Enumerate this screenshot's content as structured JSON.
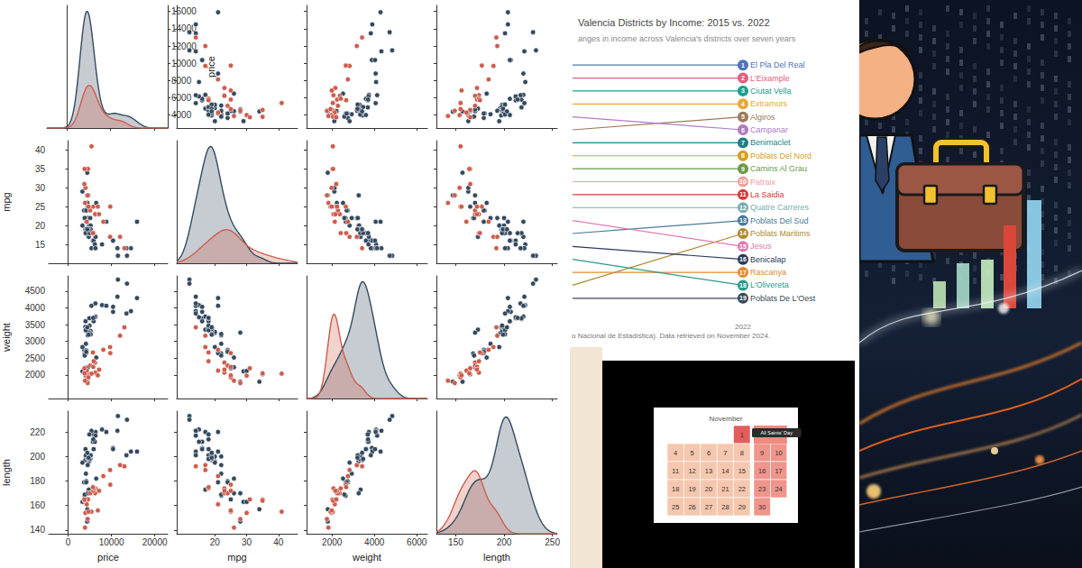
{
  "chart_data": [
    {
      "type": "pairplot",
      "grid": false,
      "marker": "circle",
      "variables": [
        {
          "label": "price",
          "xlim": [
            -4500,
            23000
          ],
          "xticks": [
            0,
            10000,
            20000
          ],
          "ylim": [
            2500,
            16700
          ],
          "yticks": [
            4000,
            6000,
            8000,
            10000,
            12000,
            14000,
            16000
          ]
        },
        {
          "label": "mpg",
          "xlim": [
            8,
            46
          ],
          "xticks": [
            20,
            30,
            40
          ],
          "ylim": [
            10,
            42.5
          ],
          "yticks": [
            15,
            20,
            25,
            30,
            35,
            40
          ]
        },
        {
          "label": "weight",
          "xlim": [
            800,
            6500
          ],
          "xticks": [
            2000,
            4000,
            6000
          ],
          "ylim": [
            1300,
            4950
          ],
          "yticks": [
            2000,
            2500,
            3000,
            3500,
            4000,
            4500
          ]
        },
        {
          "label": "length",
          "xlim": [
            130,
            255
          ],
          "xticks": [
            150,
            200,
            250
          ],
          "ylim": [
            137,
            237
          ],
          "yticks": [
            140,
            160,
            180,
            200,
            220
          ]
        }
      ],
      "series": [
        {
          "color": "#34495e",
          "values": [
            [
              4099,
              4749,
              3799,
              4816,
              7827,
              5788,
              4453,
              5189,
              10372,
              4082,
              11385,
              14500,
              15906,
              3299,
              5705,
              4504,
              5104,
              3667,
              3955,
              3984,
              4010,
              5886,
              6342,
              4389,
              4187,
              11497,
              13594,
              13466,
              3829,
              5379,
              6165,
              4516,
              6303,
              3291,
              8814,
              5172,
              4733,
              4890,
              4181,
              4195,
              10371,
              4647,
              4425,
              4482,
              6486,
              4060,
              5798,
              4934,
              5222,
              4723,
              4424,
              4172
            ],
            [
              22,
              17,
              22,
              20,
              15,
              18,
              26,
              20,
              16,
              19,
              14,
              14,
              21,
              29,
              16,
              22,
              22,
              24,
              19,
              30,
              18,
              16,
              17,
              28,
              21,
              12,
              12,
              14,
              22,
              14,
              15,
              18,
              14,
              20,
              21,
              19,
              19,
              18,
              19,
              24,
              16,
              28,
              34,
              25,
              26,
              18,
              18,
              18,
              19,
              19,
              19,
              24
            ],
            [
              2930,
              3350,
              2640,
              3250,
              4080,
              3670,
              2230,
              3280,
              3880,
              3400,
              4330,
              3900,
              4290,
              2110,
              3690,
              3180,
              3220,
              2750,
              3430,
              2120,
              3600,
              3600,
              3740,
              1800,
              2650,
              4840,
              4720,
              3830,
              2580,
              4060,
              3720,
              3370,
              4130,
              2830,
              4060,
              3310,
              3300,
              3690,
              3370,
              2730,
              4030,
              3260,
              1800,
              2200,
              2520,
              3330,
              3700,
              3470,
              3210,
              3200,
              3420,
              2690
            ],
            [
              186,
              173,
              168,
              196,
              222,
              218,
              170,
              200,
              207,
              200,
              221,
              204,
              204,
              163,
              212,
              193,
              200,
              179,
              197,
              163,
              206,
              206,
              220,
              147,
              179,
              233,
              230,
              201,
              169,
              221,
              212,
              198,
              217,
              195,
              220,
              198,
              198,
              218,
              200,
              180,
              206,
              170,
              157,
              165,
              182,
              201,
              214,
              198,
              201,
              199,
              203,
              179
            ]
          ]
        },
        {
          "color": "#cd5c4c",
          "values": [
            [
              9690,
              6295,
              9735,
              6229,
              4589,
              5079,
              8129,
              4296,
              5799,
              4499,
              3995,
              12990,
              3895,
              3798,
              5899,
              3748,
              5719,
              7140,
              5397,
              4697,
              6850,
              11995
            ],
            [
              17,
              23,
              25,
              23,
              35,
              24,
              21,
              21,
              25,
              28,
              30,
              14,
              26,
              35,
              18,
              31,
              18,
              23,
              41,
              25,
              25,
              17
            ],
            [
              2830,
              2070,
              2650,
              2370,
              2020,
              2280,
              2750,
              2130,
              2240,
              1760,
              1980,
              3420,
              1830,
              2050,
              2410,
              2200,
              2670,
              2160,
              2040,
              1930,
              1990,
              3170
            ],
            [
              189,
              174,
              177,
              170,
              165,
              170,
              184,
              161,
              172,
              149,
              154,
              192,
              142,
              164,
              174,
              165,
              175,
              172,
              155,
              155,
              156,
              193
            ]
          ]
        }
      ]
    },
    {
      "type": "line",
      "title": "Valencia Districts by Income: 2015 vs. 2022",
      "subtitle": "anges in income across Valencia's districts over seven years",
      "source": "o Nacional de Estadística). Data retrieved on November 2024.",
      "categories": [
        null,
        "2022"
      ],
      "ylim": [
        0.5,
        19.5
      ],
      "tick_labels": "x",
      "data_labels": true,
      "marker": "circle",
      "series": [
        {
          "name": "El Pla Del Real",
          "color": "#4f74b8",
          "values": [
            1,
            1
          ]
        },
        {
          "name": "L'Eixample",
          "color": "#e0607e",
          "values": [
            2,
            2
          ]
        },
        {
          "name": "Ciutat Vella",
          "color": "#1a9e8f",
          "values": [
            3,
            3
          ]
        },
        {
          "name": "Extramurs",
          "color": "#e8a838",
          "values": [
            4,
            4
          ]
        },
        {
          "name": "Algiros",
          "color": "#9c7a5b",
          "values": [
            6,
            5
          ]
        },
        {
          "name": "Campanar",
          "color": "#b07cc6",
          "values": [
            5,
            6
          ]
        },
        {
          "name": "Benimaclet",
          "color": "#1f7f86",
          "values": [
            7,
            7
          ]
        },
        {
          "name": "Poblats Del Nord",
          "color": "#d4a020",
          "values": [
            8,
            8
          ]
        },
        {
          "name": "Camins Al Grau",
          "color": "#6a9a4a",
          "values": [
            9,
            9
          ]
        },
        {
          "name": "Patraix",
          "color": "#f0a0a0",
          "values": [
            10,
            10
          ]
        },
        {
          "name": "La Saidia",
          "color": "#d43a3a",
          "values": [
            11,
            11
          ]
        },
        {
          "name": "Quatre Carreres",
          "color": "#79aeb0",
          "values": [
            12,
            12
          ]
        },
        {
          "name": "Poblats Del Sud",
          "color": "#4a7a9a",
          "values": [
            14,
            13
          ]
        },
        {
          "name": "Poblats Maritims",
          "color": "#b08a30",
          "values": [
            18,
            14
          ]
        },
        {
          "name": "Jesus",
          "color": "#e07ab0",
          "values": [
            13,
            15
          ]
        },
        {
          "name": "Benicalap",
          "color": "#2a3a5a",
          "values": [
            15,
            16
          ]
        },
        {
          "name": "Rascanya",
          "color": "#e08a30",
          "values": [
            17,
            17
          ]
        },
        {
          "name": "L'Olivereta",
          "color": "#2a9a8a",
          "values": [
            16,
            18
          ]
        },
        {
          "name": "Poblats De L'Oest",
          "color": "#3a4a5a",
          "values": [
            19,
            19
          ]
        }
      ]
    }
  ],
  "calendar": {
    "title": "November",
    "weeks": [
      [
        null,
        null,
        null,
        null,
        1,
        null,
        null
      ],
      [
        4,
        5,
        6,
        7,
        8,
        9,
        10
      ],
      [
        11,
        12,
        13,
        14,
        15,
        16,
        17
      ],
      [
        18,
        19,
        20,
        21,
        22,
        23,
        24
      ],
      [
        25,
        26,
        27,
        28,
        29,
        30,
        null
      ]
    ],
    "holidays": [
      1
    ],
    "annotation": "All Saints' Day"
  }
}
